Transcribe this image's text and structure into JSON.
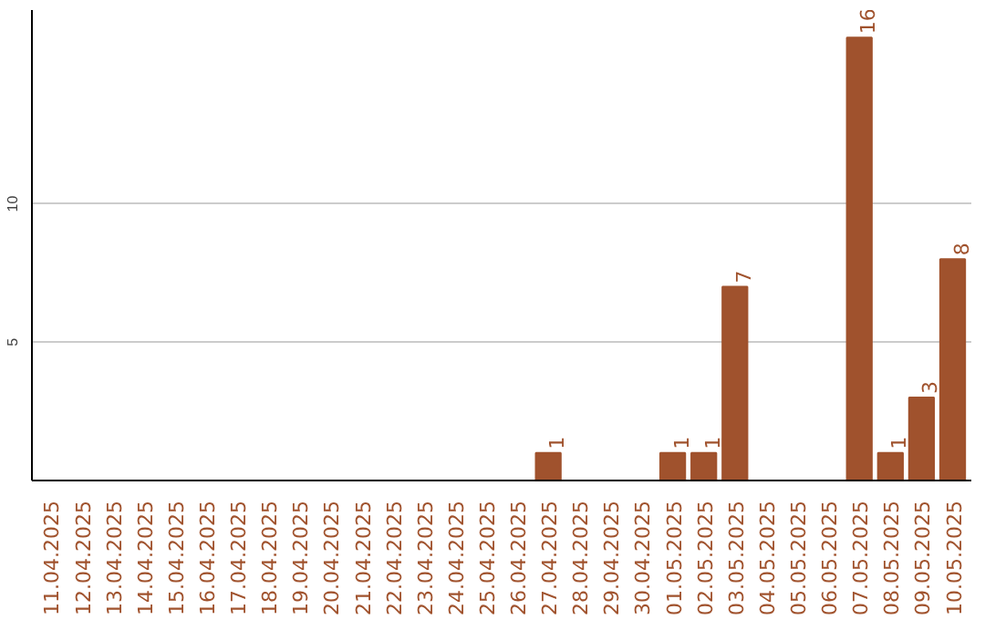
{
  "chart_data": {
    "type": "bar",
    "categories": [
      "11.04.2025",
      "12.04.2025",
      "13.04.2025",
      "14.04.2025",
      "15.04.2025",
      "16.04.2025",
      "17.04.2025",
      "18.04.2025",
      "19.04.2025",
      "20.04.2025",
      "21.04.2025",
      "22.04.2025",
      "23.04.2025",
      "24.04.2025",
      "25.04.2025",
      "26.04.2025",
      "27.04.2025",
      "28.04.2025",
      "29.04.2025",
      "30.04.2025",
      "01.05.2025",
      "02.05.2025",
      "03.05.2025",
      "04.05.2025",
      "05.05.2025",
      "06.05.2025",
      "07.05.2025",
      "08.05.2025",
      "09.05.2025",
      "10.05.2025"
    ],
    "values": [
      0,
      0,
      0,
      0,
      0,
      0,
      0,
      0,
      0,
      0,
      0,
      0,
      0,
      0,
      0,
      0,
      1,
      0,
      0,
      0,
      1,
      1,
      7,
      0,
      0,
      0,
      16,
      1,
      3,
      8
    ],
    "value_labels": [
      null,
      null,
      null,
      null,
      null,
      null,
      null,
      null,
      null,
      null,
      null,
      null,
      null,
      null,
      null,
      null,
      "1",
      null,
      null,
      null,
      "1",
      "1",
      "7",
      null,
      null,
      null,
      "16",
      "1",
      "3",
      "8"
    ],
    "color": "#a0522d",
    "ylim": [
      0,
      17
    ],
    "yticks": [
      5,
      10
    ],
    "grid": "y"
  }
}
